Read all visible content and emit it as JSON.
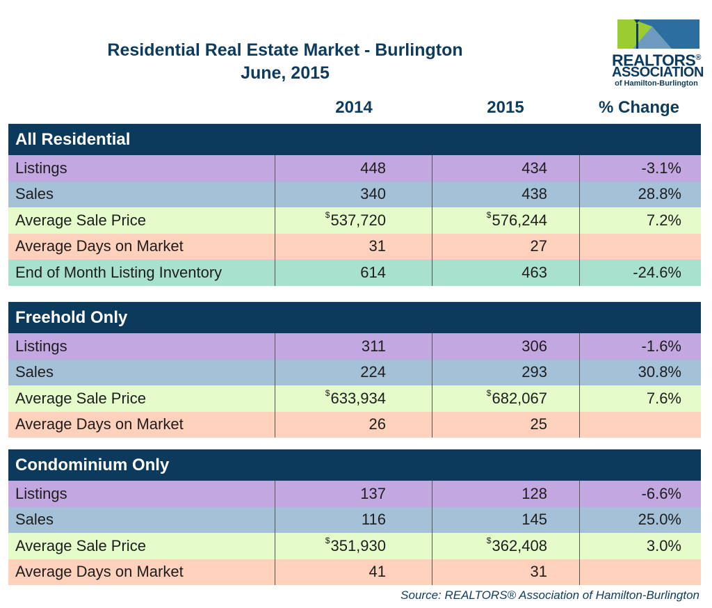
{
  "title": "Residential Real Estate Market - Burlington",
  "subtitle": "June, 2015",
  "logo": {
    "name": "REALTORS",
    "reg_mark": "®",
    "line2": "ASSOCIATION",
    "line3": "of Hamilton-Burlington",
    "colors": {
      "green": "#9acd32",
      "blue": "#2c6ea0",
      "navy": "#0d3b5e"
    }
  },
  "columns": [
    "2014",
    "2015",
    "% Change"
  ],
  "currency_symbol": "$",
  "colors": {
    "header": "#0b3a5c",
    "listings": "#c2a7e0",
    "sales": "#a5c1d8",
    "average_sale_price": "#e5fbca",
    "average_days": "#fdd1bb",
    "inventory": "#a9e1cf"
  },
  "chart_data": {
    "type": "table",
    "title": "Residential Real Estate Market - Burlington",
    "subtitle": "June, 2015",
    "columns": [
      "2014",
      "2015",
      "% Change"
    ],
    "sections": [
      {
        "name": "All Residential",
        "rows": [
          {
            "label": "Listings",
            "v2014": "448",
            "v2015": "434",
            "change": "-3.1%"
          },
          {
            "label": "Sales",
            "v2014": "340",
            "v2015": "438",
            "change": "28.8%"
          },
          {
            "label": "Average Sale Price",
            "v2014": "537,720",
            "v2015": "576,244",
            "change": "7.2%"
          },
          {
            "label": "Average Days on Market",
            "v2014": "31",
            "v2015": "27",
            "change": ""
          },
          {
            "label": "End of Month Listing Inventory",
            "v2014": "614",
            "v2015": "463",
            "change": "-24.6%"
          }
        ]
      },
      {
        "name": "Freehold Only",
        "rows": [
          {
            "label": "Listings",
            "v2014": "311",
            "v2015": "306",
            "change": "-1.6%"
          },
          {
            "label": "Sales",
            "v2014": "224",
            "v2015": "293",
            "change": "30.8%"
          },
          {
            "label": "Average Sale Price",
            "v2014": "633,934",
            "v2015": "682,067",
            "change": "7.6%"
          },
          {
            "label": "Average Days on Market",
            "v2014": "26",
            "v2015": "25",
            "change": ""
          }
        ]
      },
      {
        "name": "Condominium Only",
        "rows": [
          {
            "label": "Listings",
            "v2014": "137",
            "v2015": "128",
            "change": "-6.6%"
          },
          {
            "label": "Sales",
            "v2014": "116",
            "v2015": "145",
            "change": "25.0%"
          },
          {
            "label": "Average Sale Price",
            "v2014": "351,930",
            "v2015": "362,408",
            "change": "3.0%"
          },
          {
            "label": "Average Days on Market",
            "v2014": "41",
            "v2015": "31",
            "change": ""
          }
        ]
      }
    ]
  },
  "source": "Source:  REALTORS® Association of Hamilton-Burlington"
}
